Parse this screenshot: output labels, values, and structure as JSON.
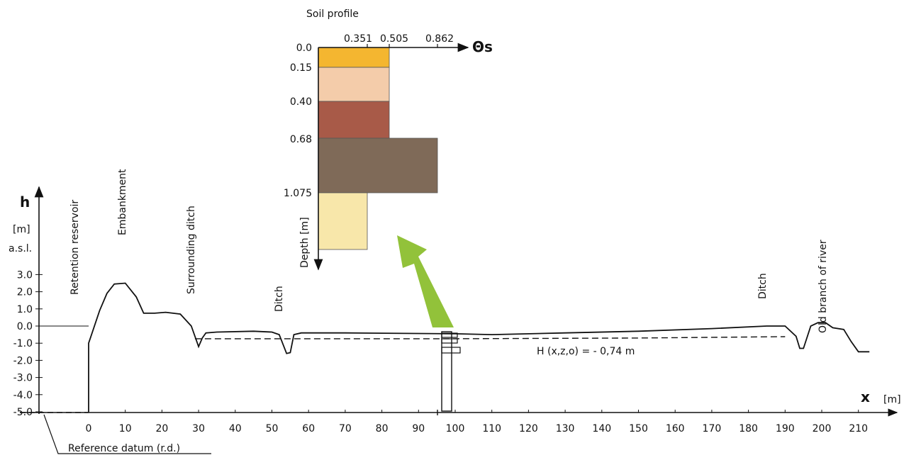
{
  "soil_profile": {
    "title": "Soil profile",
    "theta_label": "Θs",
    "theta_ticks": [
      "0.351",
      "0.505",
      "0.862"
    ],
    "depth_label": "Depth  [m]",
    "depth_ticks": [
      "0.0",
      "0.15",
      "0.40",
      "0.68",
      "1.075"
    ],
    "layers": [
      {
        "top": 0.0,
        "bottom": 0.15,
        "theta": 0.505,
        "color": "#f4b630"
      },
      {
        "top": 0.15,
        "bottom": 0.4,
        "theta": 0.505,
        "color": "#f4ccaa"
      },
      {
        "top": 0.4,
        "bottom": 0.68,
        "theta": 0.505,
        "color": "#a85a48"
      },
      {
        "top": 0.68,
        "bottom": 1.075,
        "theta": 0.862,
        "color": "#7f6a58"
      },
      {
        "top": 1.075,
        "bottom": 1.5,
        "theta": 0.351,
        "color": "#f8e7aa"
      }
    ]
  },
  "cross_section": {
    "y_label": "h",
    "y_unit": "[m]",
    "y_unit2": "a.s.l.",
    "y_ticks": [
      "3.0",
      "2.0",
      "1.0",
      "0.0",
      "-1.0",
      "-2.0",
      "-3.0",
      "-4.0",
      "-5.0"
    ],
    "x_label": "x",
    "x_unit": "[m]",
    "x_ticks": [
      "0",
      "10",
      "20",
      "30",
      "40",
      "50",
      "60",
      "70",
      "80",
      "90",
      "100",
      "110",
      "120",
      "130",
      "140",
      "150",
      "160",
      "170",
      "180",
      "190",
      "200",
      "210"
    ],
    "features": [
      "Retention  reservoir",
      "Embankment",
      "Surrounding ditch",
      "Ditch",
      "Ditch",
      "Old branch of river"
    ],
    "water_table_label": "H (x,z,o) = - 0,74 m",
    "reference_datum": "Reference datum (r.d.)",
    "arrow_color": "#92c23a",
    "terrain": [
      [
        0,
        -5.0
      ],
      [
        0,
        -1.0
      ],
      [
        3,
        0.9
      ],
      [
        5,
        1.9
      ],
      [
        7,
        2.45
      ],
      [
        10,
        2.5
      ],
      [
        13,
        1.7
      ],
      [
        15,
        0.75
      ],
      [
        18,
        0.75
      ],
      [
        21,
        0.8
      ],
      [
        25,
        0.7
      ],
      [
        28,
        0.0
      ],
      [
        30,
        -1.2
      ],
      [
        31,
        -0.7
      ],
      [
        32,
        -0.4
      ],
      [
        35,
        -0.35
      ],
      [
        45,
        -0.3
      ],
      [
        50,
        -0.35
      ],
      [
        52,
        -0.5
      ],
      [
        54,
        -1.6
      ],
      [
        55,
        -1.55
      ],
      [
        56,
        -0.5
      ],
      [
        58,
        -0.4
      ],
      [
        70,
        -0.4
      ],
      [
        100,
        -0.45
      ],
      [
        110,
        -0.5
      ],
      [
        130,
        -0.4
      ],
      [
        150,
        -0.3
      ],
      [
        170,
        -0.15
      ],
      [
        185,
        0.0
      ],
      [
        190,
        0.0
      ],
      [
        193,
        -0.6
      ],
      [
        194,
        -1.3
      ],
      [
        195,
        -1.3
      ],
      [
        197,
        0.0
      ],
      [
        199,
        0.2
      ],
      [
        201,
        0.2
      ],
      [
        203,
        -0.1
      ],
      [
        206,
        -0.2
      ],
      [
        208,
        -0.9
      ],
      [
        210,
        -1.5
      ],
      [
        213,
        -1.5
      ]
    ],
    "water_table": [
      [
        29,
        -0.74
      ],
      [
        60,
        -0.74
      ],
      [
        100,
        -0.74
      ],
      [
        150,
        -0.7
      ],
      [
        190,
        -0.62
      ]
    ]
  }
}
